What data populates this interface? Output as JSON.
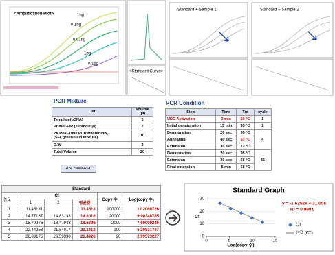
{
  "amplification": {
    "title": "<Amplification Plot>",
    "labels": [
      "1ng",
      "0.1ng",
      "0.01ng",
      "1pg",
      "0.1pg"
    ],
    "standard_curve": "<Standard Curve>"
  },
  "panels": [
    {
      "title": "Standard + Sample 1"
    },
    {
      "title": "Standard + Sample 2"
    }
  ],
  "pcr_mixture": {
    "title": "PCR Mixture",
    "header": [
      "List",
      "Volume (µl)"
    ],
    "rows": [
      [
        "Template(gDNA)",
        "5"
      ],
      [
        "Primer-F/R (10pmole/µl)",
        "2"
      ],
      [
        "2X Real-Time PCR Master mix, (SFCgreen® I in Mixture)",
        "10"
      ],
      [
        "D.W",
        "3"
      ],
      [
        "Total Volume",
        "20"
      ]
    ],
    "instrument": "ABI 7500FAST"
  },
  "pcr_condition": {
    "title": "PCR Condition",
    "header": [
      "Step",
      "Time",
      "Tm",
      "cycle"
    ],
    "rows": [
      [
        "UDG Activation",
        "3 min",
        "50 °C"
      ],
      [
        "Initial denaturation",
        "15 min",
        "95 °C"
      ],
      [
        "Denaturation",
        "20 sec",
        "95 °C"
      ],
      [
        "Annealing",
        "40 sec",
        "57 °C"
      ],
      [
        "Extension",
        "30 sec",
        "72 °C"
      ],
      [
        "Denaturation",
        "20 sec",
        "95 °C"
      ],
      [
        "Extension",
        "30 sec",
        "68 °C"
      ],
      [
        "Final extension",
        "5 min",
        "68 °C"
      ]
    ],
    "cycles": [
      "1",
      "1",
      "4",
      "35"
    ]
  },
  "standard_table": {
    "title": "Standard",
    "group_header": [
      "Ct",
      "Copy 수",
      "Log(copy 수)"
    ],
    "sub_header": [
      "농도",
      "1",
      "2",
      "평균값"
    ],
    "rows": [
      [
        "1",
        "11.45131",
        null,
        "11.4513",
        "200000",
        "12.2060726"
      ],
      [
        "2",
        "14.77187",
        "14.83133",
        "14.8016",
        "20000",
        "9.90348755"
      ],
      [
        "3",
        "18.79976",
        "18.47943",
        "18.6396",
        "2000",
        "7.60090246"
      ],
      [
        "4",
        "22.44253",
        "21.84017",
        "22.1413",
        "200",
        "5.29831737"
      ],
      [
        "5",
        "26.39175",
        "26.59338",
        "26.4926",
        "20",
        "2.99573227"
      ]
    ]
  },
  "standard_graph": {
    "type": "scatter",
    "title": "Standard Graph",
    "equation": "y = -1.6252x + 31.058",
    "r_squared": "R² = 0.9981",
    "y_label": "Ct",
    "x_label": "Log(copy 수)",
    "legend": [
      "CT",
      "선형 (CT)"
    ],
    "color": "#4472c4",
    "x": [
      12.2060726,
      9.90348755,
      7.60090246,
      5.29831737,
      2.99573227
    ],
    "values": [
      11.4513,
      14.8016,
      18.6396,
      22.1413,
      26.4926
    ],
    "xlim": [
      0,
      15
    ],
    "ylim": [
      0,
      30
    ],
    "xticks": [
      0,
      5,
      10,
      15
    ],
    "yticks": [
      0,
      10,
      20,
      30
    ]
  }
}
